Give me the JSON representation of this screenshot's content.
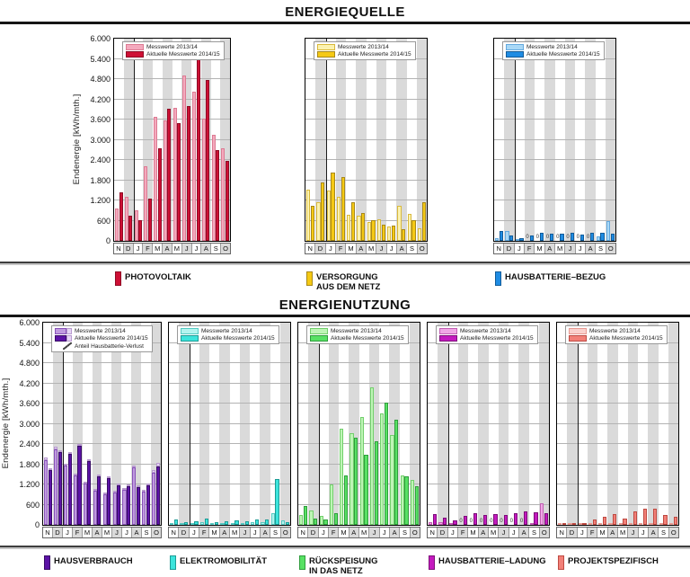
{
  "sections": [
    {
      "title": "ENERGIEQUELLE"
    },
    {
      "title": "ENERGIENUTZUNG"
    }
  ],
  "y_axis": {
    "title": "Endenergie [kWh/mth.]",
    "max": 6000,
    "tick_step": 600,
    "ticks": [
      "6.000",
      "5.400",
      "4.800",
      "4.200",
      "3.600",
      "3.000",
      "2.400",
      "1.800",
      "1.200",
      "600",
      "0"
    ]
  },
  "months": [
    "N",
    "D",
    "J",
    "F",
    "M",
    "A",
    "M",
    "J",
    "J",
    "A",
    "S",
    "O"
  ],
  "legend": {
    "prev": "Messwerte 2013/14",
    "curr": "Aktuelle Messwerte 2014/15",
    "loss": "Anteil Hausbatterie-Verlust"
  },
  "zero_label": "0",
  "chart_data": [
    {
      "id": "photovoltaik",
      "label": "PHOTOVOLTAIK",
      "type": "bar",
      "ylim": [
        0,
        6000
      ],
      "colors": {
        "prev": "#F4A9BD",
        "prev_border": "#DC7B93",
        "curr": "#CE1035",
        "curr_border": "#8F0B25"
      },
      "series": [
        {
          "name": "Messwerte 2013/14",
          "values": [
            960,
            1320,
            900,
            2210,
            3670,
            3580,
            3960,
            4920,
            4440,
            3640,
            3160,
            2760
          ]
        },
        {
          "name": "Aktuelle Messwerte 2014/15",
          "values": [
            1440,
            740,
            610,
            1250,
            2760,
            3920,
            3490,
            4010,
            5450,
            4780,
            2690,
            2380
          ]
        }
      ]
    },
    {
      "id": "versorgung-netz",
      "label": "VERSORGUNG\nAUS DEM NETZ",
      "type": "bar",
      "ylim": [
        0,
        6000
      ],
      "colors": {
        "prev": "#FBF2B0",
        "prev_border": "#D9B93C",
        "curr": "#F5C914",
        "curr_border": "#A8891A"
      },
      "series": [
        {
          "name": "Messwerte 2013/14",
          "values": [
            1510,
            1150,
            1490,
            1300,
            780,
            740,
            560,
            650,
            430,
            1050,
            800,
            380
          ]
        },
        {
          "name": "Aktuelle Messwerte 2014/15",
          "values": [
            1050,
            1740,
            2040,
            1890,
            1160,
            830,
            620,
            470,
            450,
            360,
            610,
            1160
          ]
        }
      ]
    },
    {
      "id": "hausbatterie-bezug",
      "label": "HAUSBATTERIE–BEZUG",
      "type": "bar",
      "ylim": [
        0,
        6000
      ],
      "colors": {
        "prev": "#A9D8F6",
        "prev_border": "#64A9DE",
        "curr": "#1F8CE3",
        "curr_border": "#125C99"
      },
      "zero_label_indices": [
        3,
        4,
        5,
        6,
        7,
        8,
        9
      ],
      "series": [
        {
          "name": "Messwerte 2013/14",
          "values": [
            90,
            300,
            20,
            0,
            0,
            0,
            0,
            0,
            0,
            0,
            140,
            580
          ]
        },
        {
          "name": "Aktuelle Messwerte 2014/15",
          "values": [
            300,
            150,
            80,
            150,
            230,
            220,
            210,
            230,
            200,
            230,
            250,
            210
          ]
        }
      ]
    },
    {
      "id": "hausverbrauch",
      "label": "HAUSVERBRAUCH",
      "type": "bar",
      "ylim": [
        0,
        6000
      ],
      "colors": {
        "prev": "#C09ADF",
        "prev_border": "#8853B8",
        "curr": "#5C13A6",
        "curr_border": "#380C66",
        "loss": "#E6D5F5",
        "loss_border": "#B89ACF"
      },
      "series": [
        {
          "name": "Messwerte 2013/14",
          "values": [
            1930,
            2250,
            1750,
            1470,
            1230,
            1010,
            900,
            970,
            1050,
            1700,
            990,
            1560
          ]
        },
        {
          "name": "Aktuelle Messwerte 2014/15",
          "values": [
            1630,
            2150,
            2120,
            2350,
            1900,
            1450,
            1380,
            1180,
            1160,
            1130,
            1180,
            1740
          ]
        },
        {
          "name": "Anteil Hausbatterie-Verlust 2013/14",
          "values": [
            70,
            70,
            55,
            55,
            50,
            45,
            40,
            40,
            45,
            65,
            45,
            65
          ]
        },
        {
          "name": "Anteil Hausbatterie-Verlust 2014/15",
          "values": [
            60,
            70,
            50,
            60,
            60,
            50,
            50,
            40,
            40,
            40,
            50,
            95
          ]
        }
      ]
    },
    {
      "id": "elektromobilitaet",
      "label": "ELEKTROMOBILITÄT",
      "type": "bar",
      "ylim": [
        0,
        6000
      ],
      "colors": {
        "prev": "#B3F4EF",
        "prev_border": "#55C9C2",
        "curr": "#3CE4DC",
        "curr_border": "#1D9B95"
      },
      "series": [
        {
          "name": "Messwerte 2013/14",
          "values": [
            60,
            40,
            60,
            70,
            50,
            60,
            50,
            50,
            70,
            90,
            360,
            140
          ]
        },
        {
          "name": "Aktuelle Messwerte 2014/15",
          "values": [
            150,
            90,
            110,
            200,
            90,
            110,
            140,
            110,
            150,
            170,
            1360,
            90
          ]
        }
      ]
    },
    {
      "id": "rueckspeisung",
      "label": "RÜCKSPEISUNG\nIN DAS NETZ",
      "type": "bar",
      "ylim": [
        0,
        6000
      ],
      "colors": {
        "prev": "#BEF5B6",
        "prev_border": "#72CF6C",
        "curr": "#58E164",
        "curr_border": "#2F9C3C"
      },
      "series": [
        {
          "name": "Messwerte 2013/14",
          "values": [
            300,
            420,
            280,
            1200,
            2850,
            2710,
            3200,
            4070,
            3300,
            2670,
            1470,
            1340
          ]
        },
        {
          "name": "Aktuelle Messwerte 2014/15",
          "values": [
            550,
            190,
            170,
            360,
            1470,
            2600,
            2090,
            2490,
            3630,
            3110,
            1440,
            1160
          ]
        }
      ]
    },
    {
      "id": "hausbatterie-ladung",
      "label": "HAUSBATTERIE–LADUNG",
      "type": "bar",
      "ylim": [
        0,
        6000
      ],
      "colors": {
        "prev": "#F0A6E6",
        "prev_border": "#C25FB3",
        "curr": "#C41ABF",
        "curr_border": "#7D0F79"
      },
      "zero_label_indices": [
        3,
        4,
        5,
        6,
        7,
        8,
        9
      ],
      "series": [
        {
          "name": "Messwerte 2013/14",
          "values": [
            90,
            70,
            60,
            0,
            0,
            0,
            0,
            0,
            0,
            0,
            60,
            640
          ]
        },
        {
          "name": "Aktuelle Messwerte 2014/15",
          "values": [
            330,
            210,
            130,
            260,
            350,
            300,
            330,
            290,
            340,
            410,
            380,
            350
          ]
        }
      ]
    },
    {
      "id": "projektspezifisch",
      "label": "PROJEKTSPEZIFISCH",
      "type": "bar",
      "ylim": [
        0,
        6000
      ],
      "colors": {
        "prev": "#FAD1CD",
        "prev_border": "#E89B93",
        "curr": "#F28078",
        "curr_border": "#BE4A42"
      },
      "series": [
        {
          "name": "Messwerte 2013/14",
          "values": [
            20,
            10,
            15,
            20,
            30,
            40,
            25,
            35,
            45,
            45,
            30,
            25
          ]
        },
        {
          "name": "Aktuelle Messwerte 2014/15",
          "values": [
            50,
            35,
            50,
            150,
            250,
            330,
            180,
            400,
            480,
            470,
            300,
            230
          ]
        }
      ]
    }
  ]
}
